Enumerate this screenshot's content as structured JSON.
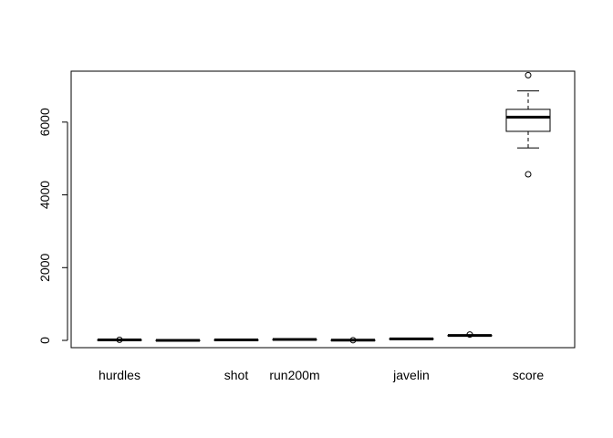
{
  "chart_data": {
    "type": "boxplot",
    "title": "",
    "xlabel": "",
    "ylabel": "",
    "ylim": [
      -200,
      7400
    ],
    "y_ticks": [
      0,
      2000,
      4000,
      6000
    ],
    "y_tick_labels": [
      "0",
      "2000",
      "4000",
      "6000"
    ],
    "grid": false,
    "legend": "none",
    "colors": {
      "stroke": "#000000",
      "fill": "#ffffff",
      "background": "#ffffff"
    },
    "categories": [
      {
        "label": "hurdles",
        "q1": 13.5,
        "median": 13.8,
        "q3": 14.1,
        "whisker_low": 12.7,
        "whisker_high": 14.6,
        "outliers": [
          16.4
        ]
      },
      {
        "label": "",
        "q1": 1.75,
        "median": 1.8,
        "q3": 1.83,
        "whisker_low": 1.5,
        "whisker_high": 1.86,
        "outliers": []
      },
      {
        "label": "shot",
        "q1": 12.5,
        "median": 13.0,
        "q3": 14.2,
        "whisker_low": 10.0,
        "whisker_high": 16.2,
        "outliers": []
      },
      {
        "label": "run200m",
        "q1": 23.9,
        "median": 24.6,
        "q3": 25.1,
        "whisker_low": 22.5,
        "whisker_high": 26.6,
        "outliers": []
      },
      {
        "label": "",
        "q1": 6.0,
        "median": 6.3,
        "q3": 6.4,
        "whisker_low": 5.5,
        "whisker_high": 7.3,
        "outliers": [
          4.9
        ]
      },
      {
        "label": "javelin",
        "q1": 39.0,
        "median": 41.0,
        "q3": 45.0,
        "whisker_low": 35.0,
        "whisker_high": 48.0,
        "outliers": []
      },
      {
        "label": "",
        "q1": 132,
        "median": 135,
        "q3": 138,
        "whisker_low": 124,
        "whisker_high": 150,
        "outliers": [
          160
        ]
      },
      {
        "label": "score",
        "q1": 5746,
        "median": 6137,
        "q3": 6351,
        "whisker_low": 5289,
        "whisker_high": 6858,
        "outliers": [
          7291,
          4566
        ]
      }
    ]
  }
}
